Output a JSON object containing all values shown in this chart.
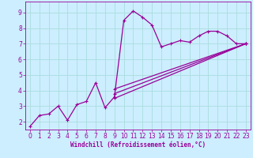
{
  "background_color": "#cceeff",
  "grid_color": "#aadddd",
  "line_color": "#990099",
  "xlabel": "Windchill (Refroidissement éolien,°C)",
  "xlabel_color": "#990099",
  "xlim": [
    -0.5,
    23.5
  ],
  "ylim": [
    1.5,
    9.7
  ],
  "xticks": [
    0,
    1,
    2,
    3,
    4,
    5,
    6,
    7,
    8,
    9,
    10,
    11,
    12,
    13,
    14,
    15,
    16,
    17,
    18,
    19,
    20,
    21,
    22,
    23
  ],
  "yticks": [
    2,
    3,
    4,
    5,
    6,
    7,
    8,
    9
  ],
  "lines": [
    {
      "x": [
        0,
        1,
        2,
        3,
        4,
        5,
        6,
        7,
        8,
        9,
        10,
        11,
        12,
        13,
        14,
        15,
        16,
        17,
        18,
        19,
        20,
        21,
        22,
        23
      ],
      "y": [
        1.7,
        2.4,
        2.5,
        3.0,
        2.1,
        3.1,
        3.3,
        4.5,
        2.9,
        3.6,
        8.5,
        9.1,
        8.7,
        8.2,
        6.8,
        7.0,
        7.2,
        7.1,
        7.5,
        7.8,
        7.8,
        7.5,
        7.0,
        7.0
      ]
    },
    {
      "x": [
        9,
        23
      ],
      "y": [
        3.5,
        7.0
      ]
    },
    {
      "x": [
        9,
        23
      ],
      "y": [
        3.8,
        7.0
      ]
    },
    {
      "x": [
        9,
        23
      ],
      "y": [
        4.1,
        7.0
      ]
    }
  ],
  "marker": "+",
  "markersize": 3,
  "linewidth": 0.9
}
